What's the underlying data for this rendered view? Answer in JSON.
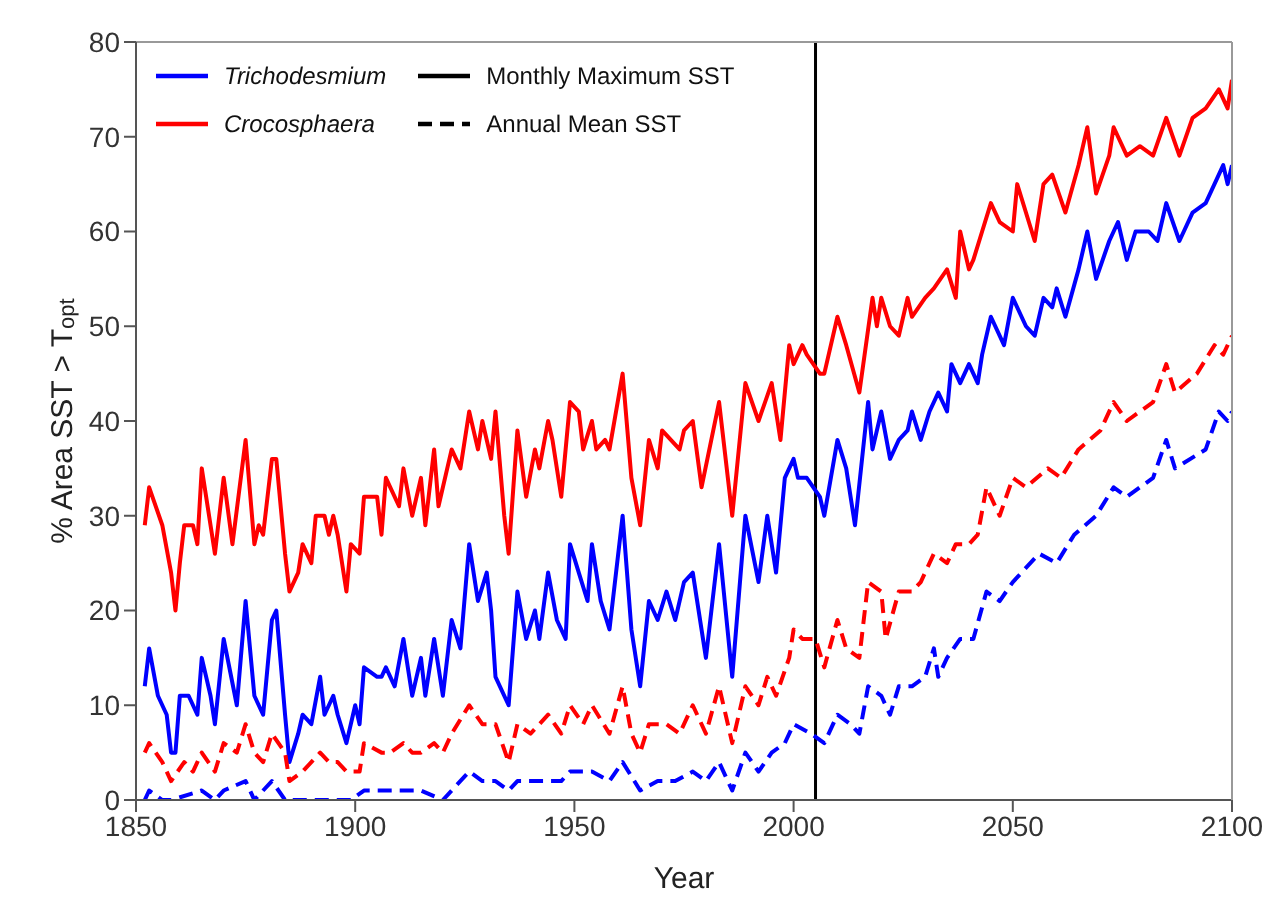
{
  "chart_data": {
    "type": "line",
    "xlabel": "Year",
    "ylabel": "% Area SST > T$_{opt}$",
    "xlim": [
      1850,
      2100
    ],
    "xticks": [
      1850,
      1900,
      1950,
      2000,
      2050,
      2100
    ],
    "ylim": [
      0,
      80
    ],
    "yticks": [
      0,
      10,
      20,
      30,
      40,
      50,
      60,
      70,
      80
    ],
    "legend": "top left",
    "annotations": [
      "Monthly Maximum SST",
      "Annual Mean SST"
    ],
    "ref_lines": [
      {
        "axis": "x",
        "value": 2005,
        "color": "#000000"
      }
    ],
    "series": [
      {
        "name": "Trichodesmium",
        "color": "#0000ff",
        "line_style": "solid",
        "x": [
          1852,
          1853,
          1855,
          1857,
          1858,
          1859,
          1860,
          1862,
          1864,
          1865,
          1867,
          1868,
          1870,
          1873,
          1875,
          1877,
          1879,
          1881,
          1882,
          1884,
          1885,
          1887,
          1888,
          1890,
          1892,
          1893,
          1895,
          1896,
          1898,
          1900,
          1901,
          1902,
          1905,
          1906,
          1907,
          1909,
          1911,
          1913,
          1915,
          1916,
          1918,
          1920,
          1922,
          1924,
          1926,
          1928,
          1930,
          1931,
          1932,
          1935,
          1937,
          1939,
          1941,
          1942,
          1944,
          1946,
          1948,
          1949,
          1951,
          1953,
          1954,
          1956,
          1958,
          1961,
          1963,
          1965,
          1967,
          1969,
          1971,
          1973,
          1975,
          1977,
          1980,
          1983,
          1986,
          1989,
          1992,
          1994,
          1996,
          1998,
          2000,
          2001,
          2003,
          2006,
          2007,
          2010,
          2012,
          2014,
          2017,
          2018,
          2020,
          2022,
          2024,
          2026,
          2027,
          2029,
          2031,
          2033,
          2035,
          2036,
          2038,
          2040,
          2042,
          2043,
          2045,
          2048,
          2050,
          2053,
          2055,
          2057,
          2059,
          2060,
          2062,
          2065,
          2067,
          2069,
          2072,
          2074,
          2076,
          2078,
          2081,
          2083,
          2085,
          2088,
          2091,
          2094,
          2098,
          2099,
          2100
        ],
        "values": [
          12,
          16,
          11,
          9,
          5,
          5,
          11,
          11,
          9,
          15,
          11,
          8,
          17,
          10,
          21,
          11,
          9,
          19,
          20,
          9,
          4,
          7,
          9,
          8,
          13,
          9,
          11,
          9,
          6,
          10,
          8,
          14,
          13,
          13,
          14,
          12,
          17,
          11,
          15,
          11,
          17,
          11,
          19,
          16,
          27,
          21,
          24,
          20,
          13,
          10,
          22,
          17,
          20,
          17,
          24,
          19,
          17,
          27,
          24,
          21,
          27,
          21,
          18,
          30,
          18,
          12,
          21,
          19,
          22,
          19,
          23,
          24,
          15,
          27,
          13,
          30,
          23,
          30,
          24,
          34,
          36,
          34,
          34,
          32,
          30,
          38,
          35,
          29,
          42,
          37,
          41,
          36,
          38,
          39,
          41,
          38,
          41,
          43,
          41,
          46,
          44,
          46,
          44,
          47,
          51,
          48,
          53,
          50,
          49,
          53,
          52,
          54,
          51,
          56,
          60,
          55,
          59,
          61,
          57,
          60,
          60,
          59,
          63,
          59,
          62,
          63,
          67,
          65,
          67
        ]
      },
      {
        "name": "Crocosphaera",
        "color": "#ff0000",
        "line_style": "solid",
        "x": [
          1852,
          1853,
          1856,
          1858,
          1859,
          1860,
          1861,
          1863,
          1864,
          1865,
          1867,
          1868,
          1870,
          1872,
          1875,
          1877,
          1878,
          1879,
          1881,
          1882,
          1884,
          1885,
          1887,
          1888,
          1890,
          1891,
          1893,
          1894,
          1895,
          1896,
          1898,
          1899,
          1901,
          1902,
          1904,
          1905,
          1906,
          1907,
          1910,
          1911,
          1913,
          1915,
          1916,
          1918,
          1919,
          1922,
          1924,
          1926,
          1928,
          1929,
          1931,
          1932,
          1934,
          1935,
          1937,
          1939,
          1941,
          1942,
          1944,
          1945,
          1947,
          1949,
          1951,
          1952,
          1954,
          1955,
          1957,
          1958,
          1961,
          1963,
          1965,
          1967,
          1969,
          1970,
          1972,
          1974,
          1975,
          1977,
          1979,
          1983,
          1986,
          1989,
          1992,
          1995,
          1997,
          1999,
          2000,
          2002,
          2003,
          2006,
          2007,
          2010,
          2012,
          2015,
          2018,
          2019,
          2020,
          2022,
          2024,
          2026,
          2027,
          2030,
          2032,
          2035,
          2037,
          2038,
          2040,
          2041,
          2043,
          2045,
          2047,
          2050,
          2051,
          2055,
          2057,
          2059,
          2062,
          2065,
          2067,
          2069,
          2072,
          2073,
          2076,
          2079,
          2082,
          2085,
          2088,
          2091,
          2094,
          2097,
          2099,
          2100
        ],
        "values": [
          29,
          33,
          29,
          24,
          20,
          25,
          29,
          29,
          27,
          35,
          29,
          26,
          34,
          27,
          38,
          27,
          29,
          28,
          36,
          36,
          26,
          22,
          24,
          27,
          25,
          30,
          30,
          28,
          30,
          28,
          22,
          27,
          26,
          32,
          32,
          32,
          28,
          34,
          31,
          35,
          30,
          34,
          29,
          37,
          31,
          37,
          35,
          41,
          37,
          40,
          36,
          41,
          30,
          26,
          39,
          32,
          37,
          35,
          40,
          38,
          32,
          42,
          41,
          37,
          40,
          37,
          38,
          37,
          45,
          34,
          29,
          38,
          35,
          39,
          38,
          37,
          39,
          40,
          33,
          42,
          30,
          44,
          40,
          44,
          38,
          48,
          46,
          48,
          47,
          45,
          45,
          51,
          48,
          43,
          53,
          50,
          53,
          50,
          49,
          53,
          51,
          53,
          54,
          56,
          53,
          60,
          56,
          57,
          60,
          63,
          61,
          60,
          65,
          59,
          65,
          66,
          62,
          67,
          71,
          64,
          68,
          71,
          68,
          69,
          68,
          72,
          68,
          72,
          73,
          75,
          73,
          76
        ]
      },
      {
        "color": "#0000ff",
        "line_style": "dashed",
        "x": [
          1852,
          1853,
          1856,
          1858,
          1865,
          1868,
          1870,
          1875,
          1877,
          1881,
          1884,
          1887,
          1892,
          1899,
          1902,
          1907,
          1911,
          1913,
          1915,
          1920,
          1926,
          1929,
          1932,
          1935,
          1937,
          1944,
          1947,
          1949,
          1954,
          1958,
          1961,
          1965,
          1969,
          1973,
          1977,
          1980,
          1983,
          1986,
          1989,
          1992,
          1995,
          1998,
          2000,
          2004,
          2007,
          2010,
          2013,
          2015,
          2017,
          2020,
          2022,
          2024,
          2027,
          2030,
          2032,
          2033,
          2035,
          2038,
          2041,
          2044,
          2047,
          2050,
          2056,
          2060,
          2064,
          2069,
          2073,
          2076,
          2082,
          2085,
          2087,
          2094,
          2097,
          2099,
          2100
        ],
        "values": [
          0,
          1,
          0,
          0,
          1,
          0,
          1,
          2,
          0,
          2,
          0,
          0,
          0,
          0,
          1,
          1,
          1,
          1,
          1,
          0,
          3,
          2,
          2,
          1,
          2,
          2,
          2,
          3,
          3,
          2,
          4,
          1,
          2,
          2,
          3,
          2,
          4,
          1,
          5,
          3,
          5,
          6,
          8,
          7,
          6,
          9,
          8,
          7,
          12,
          11,
          9,
          12,
          12,
          13,
          16,
          13,
          15,
          17,
          17,
          22,
          21,
          23,
          26,
          25,
          28,
          30,
          33,
          32,
          34,
          38,
          35,
          37,
          41,
          40,
          41
        ]
      },
      {
        "color": "#ff0000",
        "line_style": "dashed",
        "x": [
          1852,
          1853,
          1856,
          1858,
          1861,
          1863,
          1865,
          1868,
          1870,
          1873,
          1875,
          1877,
          1879,
          1881,
          1884,
          1885,
          1888,
          1892,
          1894,
          1896,
          1898,
          1901,
          1902,
          1906,
          1908,
          1911,
          1913,
          1915,
          1918,
          1920,
          1922,
          1926,
          1929,
          1932,
          1935,
          1937,
          1940,
          1944,
          1947,
          1949,
          1952,
          1954,
          1958,
          1961,
          1963,
          1965,
          1967,
          1971,
          1974,
          1977,
          1980,
          1983,
          1986,
          1989,
          1992,
          1994,
          1996,
          1999,
          2000,
          2002,
          2005,
          2007,
          2010,
          2012,
          2015,
          2017,
          2020,
          2021,
          2024,
          2027,
          2029,
          2032,
          2035,
          2037,
          2040,
          2042,
          2044,
          2047,
          2050,
          2053,
          2058,
          2061,
          2065,
          2070,
          2073,
          2076,
          2082,
          2085,
          2087,
          2092,
          2096,
          2098,
          2100
        ],
        "values": [
          5,
          6,
          4,
          2,
          4,
          3,
          5,
          3,
          6,
          5,
          8,
          5,
          4,
          7,
          5,
          2,
          3,
          5,
          4,
          4,
          3,
          3,
          6,
          5,
          5,
          6,
          5,
          5,
          6,
          5,
          7,
          10,
          8,
          8,
          4,
          8,
          7,
          9,
          7,
          10,
          8,
          10,
          7,
          12,
          7,
          5,
          8,
          8,
          7,
          10,
          7,
          12,
          6,
          12,
          10,
          13,
          11,
          15,
          18,
          17,
          17,
          14,
          19,
          16,
          15,
          23,
          22,
          17,
          22,
          22,
          23,
          26,
          25,
          27,
          27,
          28,
          33,
          30,
          34,
          33,
          35,
          34,
          37,
          39,
          42,
          40,
          42,
          46,
          43,
          45,
          48,
          47,
          49
        ]
      }
    ]
  }
}
